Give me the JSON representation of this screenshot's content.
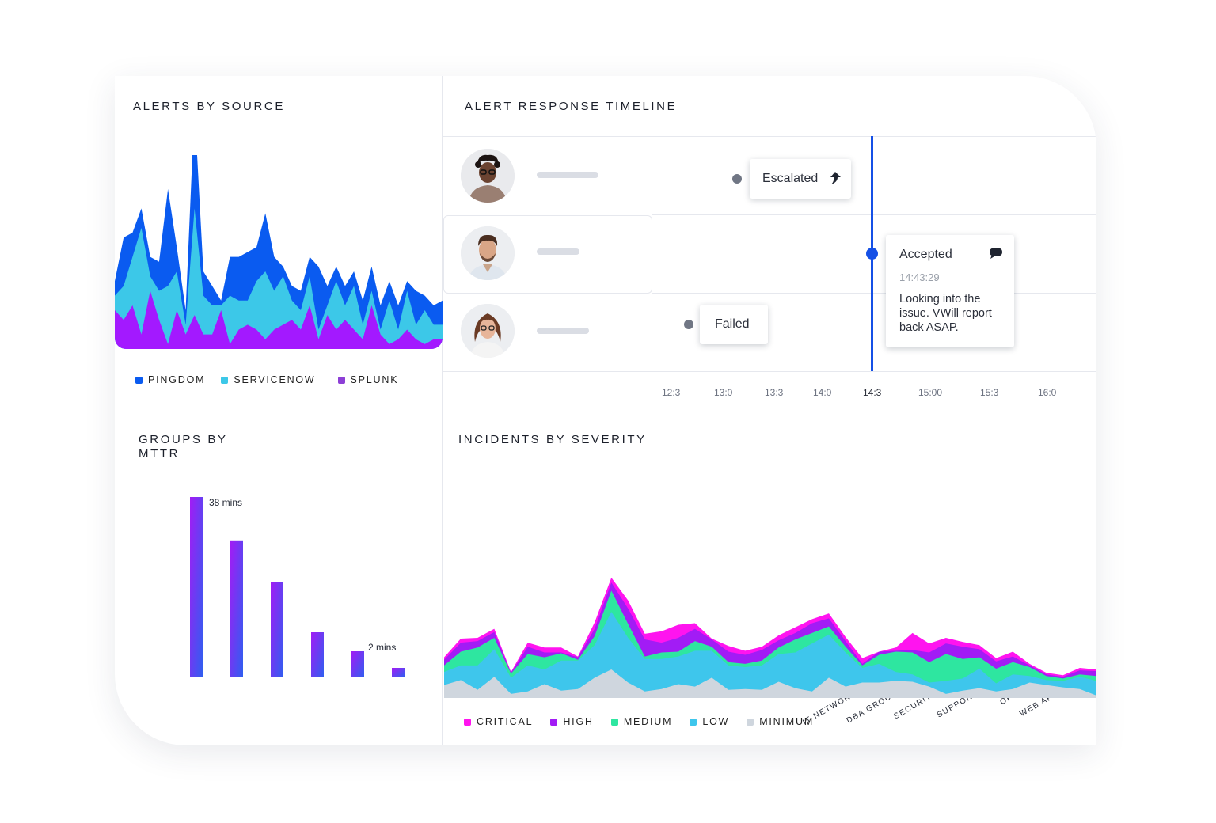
{
  "panels": {
    "alerts_by_source": {
      "title": "ALERTS BY SOURCE",
      "legend": [
        "PINGDOM",
        "SERVICENOW",
        "SPLUNK"
      ]
    },
    "alert_response_timeline": {
      "title": "ALERT RESPONSE TIMELINE",
      "events": {
        "escalated": "Escalated",
        "accepted": "Accepted",
        "accepted_time": "14:43:29",
        "accepted_message": "Looking into the issue. VWill report back ASAP.",
        "failed": "Failed"
      },
      "ticks": [
        "12:3",
        "13:0",
        "13:3",
        "14:0",
        "14:3",
        "15:00",
        "15:3",
        "16:0"
      ]
    },
    "groups_by_mttr": {
      "title": "GROUPS BY MTTR",
      "max_label": "38 mins",
      "min_label": "2 mins"
    },
    "incidents_by_severity": {
      "title": "INCIDENTS BY SEVERITY",
      "legend": [
        "CRITICAL",
        "HIGH",
        "MEDIUM",
        "LOW",
        "MINIMUM"
      ]
    }
  },
  "colors": {
    "pingdom": "#0a5bf0",
    "servicenow": "#3cc8e8",
    "splunk": "#a319ff",
    "critical": "#ff14ef",
    "high": "#a21cf5",
    "medium": "#2ee6a0",
    "low": "#3ec6ec",
    "minimum": "#cfd6de",
    "timeline_marker": "#1550e6"
  },
  "chart_data": [
    {
      "type": "area",
      "title": "ALERTS BY SOURCE",
      "stacked": true,
      "x": [
        1,
        2,
        3,
        4,
        5,
        6,
        7,
        8,
        9,
        10,
        11,
        12,
        13,
        14,
        15,
        16,
        17,
        18,
        19,
        20,
        21,
        22,
        23,
        24,
        25,
        26,
        27,
        28,
        29,
        30,
        31,
        32,
        33,
        34,
        35,
        36,
        37,
        38
      ],
      "series": [
        {
          "name": "SPLUNK",
          "values": [
            8,
            6,
            9,
            3,
            12,
            6,
            1,
            8,
            3,
            7,
            3,
            3,
            8,
            1,
            4,
            5,
            4,
            2,
            4,
            5,
            6,
            4,
            9,
            2,
            7,
            4,
            6,
            4,
            2,
            9,
            3,
            1,
            2,
            4,
            2,
            1,
            2,
            2
          ]
        },
        {
          "name": "SERVICENOW",
          "values": [
            3,
            7,
            10,
            22,
            3,
            6,
            12,
            8,
            2,
            22,
            8,
            6,
            1,
            10,
            6,
            5,
            10,
            14,
            8,
            10,
            4,
            4,
            6,
            2,
            2,
            10,
            3,
            9,
            3,
            3,
            1,
            9,
            2,
            8,
            3,
            7,
            3,
            3
          ]
        },
        {
          "name": "PINGDOM",
          "values": [
            3,
            10,
            5,
            4,
            4,
            6,
            20,
            5,
            3,
            21,
            5,
            4,
            1,
            8,
            9,
            10,
            7,
            12,
            7,
            2,
            3,
            4,
            4,
            13,
            4,
            3,
            4,
            3,
            5,
            5,
            5,
            4,
            5,
            2,
            7,
            3,
            4,
            5
          ]
        }
      ]
    },
    {
      "type": "line",
      "title": "ALERT RESPONSE TIMELINE",
      "x": [
        "12:3",
        "13:0",
        "13:3",
        "14:0",
        "14:3",
        "15:00",
        "15:3",
        "16:0"
      ],
      "events": [
        {
          "label": "Escalated"
        },
        {
          "label": "Accepted",
          "time": "14:43:29"
        },
        {
          "label": "Failed"
        }
      ]
    },
    {
      "type": "bar",
      "title": "GROUPS BY MTTR",
      "categories": [
        "IT NETWORK",
        "DBA GROUP",
        "SECURITY",
        "SUPPORT",
        "OPS",
        "WEB APP"
      ],
      "values": [
        38,
        28.7,
        20,
        9.5,
        5.5,
        2
      ],
      "annotations": [
        "38 mins",
        "",
        "",
        "",
        "",
        "2 mins"
      ],
      "ylim": [
        0,
        38
      ]
    },
    {
      "type": "area",
      "title": "INCIDENTS BY SEVERITY",
      "stacked": true,
      "x": [
        1,
        2,
        3,
        4,
        5,
        6,
        7,
        8,
        9,
        10,
        11,
        12,
        13,
        14,
        15,
        16,
        17,
        18,
        19,
        20,
        21,
        22,
        23,
        24,
        25,
        26,
        27,
        28,
        29,
        30,
        31,
        32,
        33,
        34,
        35,
        36,
        37,
        38,
        39,
        40
      ],
      "series": [
        {
          "name": "MINIMUM",
          "values": [
            16,
            22,
            10,
            26,
            5,
            8,
            17,
            9,
            11,
            25,
            35,
            19,
            8,
            11,
            17,
            14,
            25,
            10,
            11,
            10,
            20,
            12,
            8,
            25,
            14,
            19,
            19,
            21,
            20,
            14,
            5,
            9,
            12,
            8,
            11,
            19,
            16,
            13,
            11,
            3
          ]
        },
        {
          "name": "LOW",
          "values": [
            16,
            18,
            30,
            34,
            20,
            32,
            18,
            37,
            35,
            40,
            71,
            55,
            40,
            37,
            34,
            44,
            33,
            30,
            27,
            30,
            34,
            44,
            59,
            53,
            42,
            18,
            23,
            11,
            9,
            5,
            16,
            15,
            24,
            10,
            18,
            8,
            6,
            8,
            15,
            18
          ]
        },
        {
          "name": "MEDIUM",
          "values": [
            8,
            17,
            22,
            14,
            5,
            14,
            15,
            9,
            1,
            11,
            26,
            17,
            3,
            8,
            6,
            12,
            5,
            4,
            4,
            6,
            8,
            16,
            13,
            10,
            7,
            3,
            11,
            25,
            27,
            25,
            33,
            24,
            14,
            18,
            15,
            11,
            5,
            3,
            3,
            6
          ]
        },
        {
          "name": "HIGH",
          "values": [
            7,
            11,
            8,
            7,
            1,
            9,
            6,
            1,
            3,
            9,
            10,
            19,
            21,
            12,
            17,
            15,
            9,
            13,
            11,
            13,
            9,
            8,
            12,
            10,
            7,
            2,
            4,
            1,
            3,
            12,
            13,
            15,
            10,
            9,
            7,
            2,
            2,
            2,
            5,
            6
          ]
        },
        {
          "name": "CRITICAL",
          "values": [
            3,
            5,
            4,
            4,
            1,
            5,
            6,
            6,
            1,
            8,
            6,
            10,
            7,
            14,
            16,
            7,
            1,
            7,
            5,
            4,
            6,
            7,
            5,
            6,
            5,
            7,
            0,
            4,
            21,
            11,
            7,
            6,
            5,
            4,
            6,
            2,
            2,
            2,
            3,
            2
          ]
        }
      ]
    }
  ]
}
